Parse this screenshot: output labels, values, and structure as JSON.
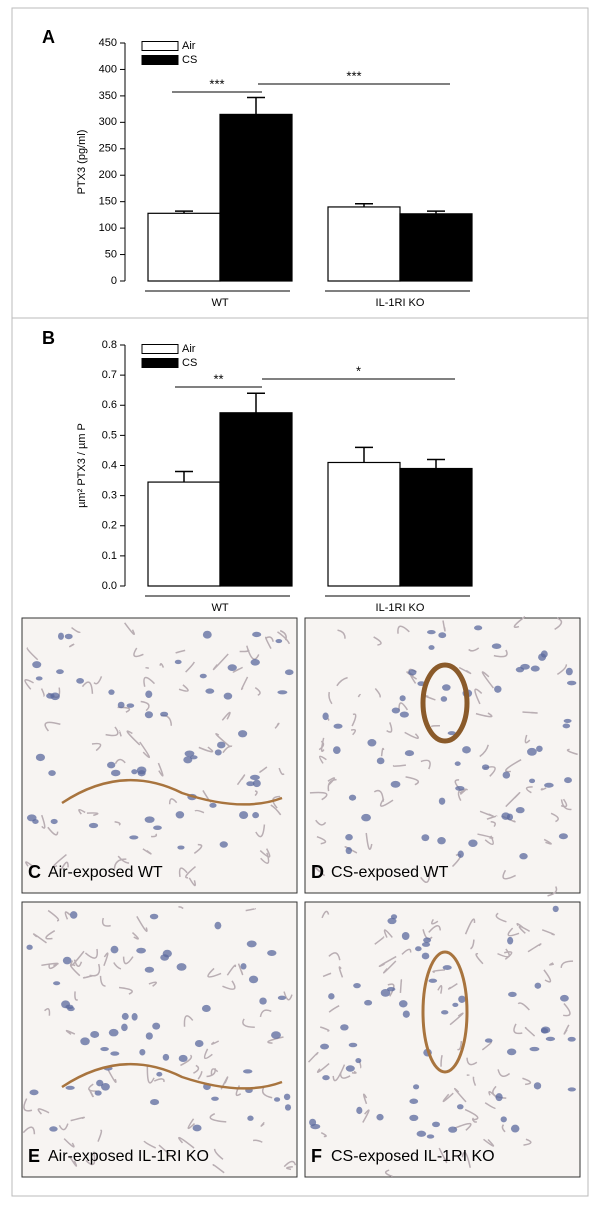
{
  "chart_data": [
    {
      "type": "bar",
      "panel": "A",
      "ylabel": "PTX3 (pg/ml)",
      "categories": [
        "WT",
        "IL-1RI KO"
      ],
      "series": [
        {
          "name": "Air",
          "color": "#ffffff",
          "values": [
            128,
            140
          ],
          "errors": [
            4,
            6
          ]
        },
        {
          "name": "CS",
          "color": "#000000",
          "values": [
            315,
            127
          ],
          "errors": [
            32,
            5
          ]
        }
      ],
      "ylim": [
        0,
        450
      ],
      "yticks": [
        0,
        50,
        100,
        150,
        200,
        250,
        300,
        350,
        400,
        450
      ],
      "annotations": [
        "***",
        "***"
      ]
    },
    {
      "type": "bar",
      "panel": "B",
      "ylabel": "µm² PTX3 / µm P",
      "categories": [
        "WT",
        "IL-1RI KO"
      ],
      "series": [
        {
          "name": "Air",
          "color": "#ffffff",
          "values": [
            0.345,
            0.41
          ],
          "errors": [
            0.035,
            0.05
          ]
        },
        {
          "name": "CS",
          "color": "#000000",
          "values": [
            0.575,
            0.39
          ],
          "errors": [
            0.065,
            0.03
          ]
        }
      ],
      "ylim": [
        0,
        0.8
      ],
      "yticks": [
        {
          "value": 0,
          "label": "0.0"
        },
        0.1,
        0.2,
        0.3,
        0.4,
        0.5,
        0.6,
        0.7,
        0.8
      ],
      "annotations": [
        "**",
        "*"
      ]
    }
  ],
  "images": [
    {
      "letter": "C",
      "caption": "Air-exposed WT"
    },
    {
      "letter": "D",
      "caption": "CS-exposed WT"
    },
    {
      "letter": "E",
      "caption": "Air-exposed IL-1RI KO"
    },
    {
      "letter": "F",
      "caption": "CS-exposed IL-1RI KO"
    }
  ]
}
